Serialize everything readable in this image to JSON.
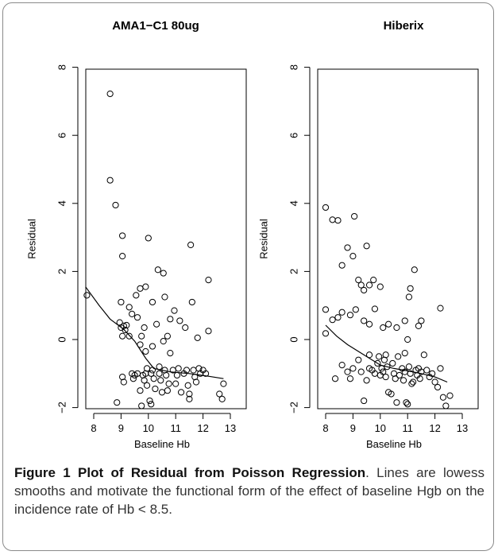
{
  "chart_data": [
    {
      "type": "scatter",
      "title": "AMA1−C1 80ug",
      "xlabel": "Baseline Hb",
      "ylabel": "Residual",
      "xlim": [
        7.6,
        13.2
      ],
      "ylim": [
        -2.3,
        8.6
      ],
      "xticks": [
        8,
        9,
        10,
        11,
        12,
        13
      ],
      "yticks": [
        -2,
        0,
        2,
        4,
        6,
        8
      ],
      "grid": false,
      "points": [
        [
          7.75,
          1.3
        ],
        [
          8.6,
          7.22
        ],
        [
          8.6,
          4.68
        ],
        [
          8.8,
          3.95
        ],
        [
          8.85,
          -1.85
        ],
        [
          9.05,
          3.05
        ],
        [
          9.05,
          2.45
        ],
        [
          9.0,
          1.1
        ],
        [
          8.95,
          0.5
        ],
        [
          9.0,
          0.35
        ],
        [
          9.05,
          0.1
        ],
        [
          9.1,
          0.4
        ],
        [
          9.15,
          0.28
        ],
        [
          9.2,
          0.42
        ],
        [
          9.05,
          -1.1
        ],
        [
          9.1,
          -1.25
        ],
        [
          9.3,
          0.95
        ],
        [
          9.4,
          0.75
        ],
        [
          9.3,
          0.1
        ],
        [
          9.4,
          -1.0
        ],
        [
          9.5,
          -1.05
        ],
        [
          9.45,
          -1.15
        ],
        [
          9.55,
          1.3
        ],
        [
          9.7,
          1.5
        ],
        [
          9.6,
          0.65
        ],
        [
          9.7,
          -0.15
        ],
        [
          9.75,
          0.1
        ],
        [
          9.8,
          -1.05
        ],
        [
          9.7,
          -1.5
        ],
        [
          9.75,
          -1.95
        ],
        [
          9.9,
          1.55
        ],
        [
          9.85,
          0.35
        ],
        [
          9.9,
          -0.35
        ],
        [
          9.95,
          -0.85
        ],
        [
          9.9,
          -1.0
        ],
        [
          9.85,
          -1.2
        ],
        [
          9.95,
          -1.35
        ],
        [
          10.0,
          2.98
        ],
        [
          10.05,
          -1.8
        ],
        [
          10.1,
          -1.9
        ],
        [
          10.15,
          1.1
        ],
        [
          10.15,
          -0.2
        ],
        [
          10.1,
          -1.0
        ],
        [
          10.15,
          -0.9
        ],
        [
          10.2,
          -1.15
        ],
        [
          10.25,
          -1.45
        ],
        [
          10.3,
          0.45
        ],
        [
          10.35,
          2.05
        ],
        [
          10.4,
          -1.0
        ],
        [
          10.4,
          -0.8
        ],
        [
          10.45,
          -1.2
        ],
        [
          10.5,
          -1.55
        ],
        [
          10.55,
          1.95
        ],
        [
          10.6,
          1.25
        ],
        [
          10.55,
          -0.05
        ],
        [
          10.6,
          -0.9
        ],
        [
          10.65,
          -1.05
        ],
        [
          10.7,
          -1.5
        ],
        [
          10.75,
          -1.3
        ],
        [
          10.8,
          0.6
        ],
        [
          10.8,
          -0.4
        ],
        [
          10.9,
          -0.9
        ],
        [
          10.95,
          0.85
        ],
        [
          11.0,
          -1.3
        ],
        [
          11.05,
          -1.05
        ],
        [
          11.1,
          -0.85
        ],
        [
          11.15,
          0.55
        ],
        [
          11.2,
          -1.55
        ],
        [
          11.3,
          -1.0
        ],
        [
          11.35,
          0.35
        ],
        [
          11.4,
          -0.9
        ],
        [
          11.45,
          -1.35
        ],
        [
          11.5,
          -1.6
        ],
        [
          11.55,
          2.78
        ],
        [
          11.6,
          1.1
        ],
        [
          11.65,
          -0.9
        ],
        [
          11.7,
          -1.1
        ],
        [
          11.75,
          -1.25
        ],
        [
          11.8,
          0.05
        ],
        [
          11.85,
          -0.85
        ],
        [
          11.9,
          -1.0
        ],
        [
          12.0,
          -0.9
        ],
        [
          12.1,
          -1.0
        ],
        [
          12.2,
          1.75
        ],
        [
          12.2,
          0.25
        ],
        [
          12.6,
          -1.6
        ],
        [
          12.75,
          -1.3
        ],
        [
          12.7,
          -1.75
        ],
        [
          11.5,
          -1.75
        ],
        [
          9.6,
          -1.0
        ],
        [
          10.7,
          0.1
        ]
      ],
      "lowess": [
        [
          7.7,
          1.55
        ],
        [
          8.2,
          1.0
        ],
        [
          8.6,
          0.6
        ],
        [
          9.1,
          0.3
        ],
        [
          9.5,
          -0.05
        ],
        [
          9.9,
          -0.55
        ],
        [
          10.2,
          -0.85
        ],
        [
          10.8,
          -0.95
        ],
        [
          11.5,
          -1.0
        ],
        [
          12.2,
          -1.08
        ],
        [
          12.75,
          -1.15
        ]
      ]
    },
    {
      "type": "scatter",
      "title": "Hiberix",
      "xlabel": "Baseline Hb",
      "ylabel": "Residual",
      "xlim": [
        7.6,
        13.2
      ],
      "ylim": [
        -2.3,
        8.6
      ],
      "xticks": [
        8,
        9,
        10,
        11,
        12,
        13
      ],
      "yticks": [
        -2,
        0,
        2,
        4,
        6,
        8
      ],
      "grid": false,
      "points": [
        [
          8.0,
          3.88
        ],
        [
          8.25,
          3.52
        ],
        [
          8.45,
          3.5
        ],
        [
          9.05,
          3.62
        ],
        [
          8.8,
          2.7
        ],
        [
          9.0,
          2.45
        ],
        [
          9.5,
          2.75
        ],
        [
          8.6,
          2.18
        ],
        [
          9.2,
          1.75
        ],
        [
          9.3,
          1.6
        ],
        [
          9.4,
          1.45
        ],
        [
          9.6,
          1.6
        ],
        [
          9.75,
          1.75
        ],
        [
          10.0,
          1.55
        ],
        [
          8.0,
          0.88
        ],
        [
          8.0,
          0.18
        ],
        [
          8.25,
          0.58
        ],
        [
          8.45,
          0.65
        ],
        [
          8.6,
          0.8
        ],
        [
          8.9,
          0.72
        ],
        [
          9.1,
          0.88
        ],
        [
          9.4,
          0.55
        ],
        [
          9.6,
          0.45
        ],
        [
          9.8,
          0.9
        ],
        [
          10.1,
          0.35
        ],
        [
          10.3,
          0.45
        ],
        [
          10.6,
          0.35
        ],
        [
          10.9,
          0.55
        ],
        [
          11.0,
          0.0
        ],
        [
          11.05,
          1.25
        ],
        [
          11.1,
          1.5
        ],
        [
          11.25,
          2.05
        ],
        [
          11.4,
          0.4
        ],
        [
          11.5,
          0.55
        ],
        [
          12.2,
          0.92
        ],
        [
          8.35,
          -1.15
        ],
        [
          8.6,
          -0.75
        ],
        [
          8.8,
          -0.95
        ],
        [
          8.9,
          -1.15
        ],
        [
          9.0,
          -0.85
        ],
        [
          9.2,
          -0.6
        ],
        [
          9.3,
          -0.95
        ],
        [
          9.4,
          -1.8
        ],
        [
          9.5,
          -1.2
        ],
        [
          9.6,
          -0.85
        ],
        [
          9.7,
          -0.9
        ],
        [
          9.8,
          -1.0
        ],
        [
          9.9,
          -0.7
        ],
        [
          9.95,
          -0.5
        ],
        [
          10.0,
          -1.05
        ],
        [
          10.05,
          -0.85
        ],
        [
          10.1,
          -0.95
        ],
        [
          10.15,
          -0.6
        ],
        [
          10.2,
          -1.1
        ],
        [
          10.25,
          -0.8
        ],
        [
          10.3,
          -1.55
        ],
        [
          10.4,
          -1.6
        ],
        [
          10.45,
          -0.7
        ],
        [
          10.5,
          -1.0
        ],
        [
          10.55,
          -1.15
        ],
        [
          10.6,
          -1.85
        ],
        [
          10.65,
          -0.5
        ],
        [
          10.7,
          -1.05
        ],
        [
          10.8,
          -0.85
        ],
        [
          10.85,
          -1.2
        ],
        [
          10.9,
          -0.95
        ],
        [
          10.95,
          -1.85
        ],
        [
          11.0,
          -1.9
        ],
        [
          11.05,
          -0.8
        ],
        [
          11.1,
          -1.0
        ],
        [
          11.15,
          -1.3
        ],
        [
          11.2,
          -1.25
        ],
        [
          11.3,
          -0.9
        ],
        [
          11.35,
          -1.05
        ],
        [
          11.4,
          -0.85
        ],
        [
          11.45,
          -1.15
        ],
        [
          11.5,
          -0.95
        ],
        [
          11.6,
          -0.45
        ],
        [
          11.7,
          -0.9
        ],
        [
          11.8,
          -1.1
        ],
        [
          11.9,
          -1.0
        ],
        [
          12.0,
          -1.25
        ],
        [
          12.1,
          -1.4
        ],
        [
          12.2,
          -0.85
        ],
        [
          12.3,
          -1.7
        ],
        [
          12.4,
          -1.95
        ],
        [
          12.55,
          -1.65
        ],
        [
          10.9,
          -0.4
        ],
        [
          9.6,
          -0.45
        ],
        [
          10.2,
          -0.45
        ]
      ],
      "lowess": [
        [
          8.0,
          0.42
        ],
        [
          8.4,
          0.1
        ],
        [
          8.8,
          -0.15
        ],
        [
          9.2,
          -0.35
        ],
        [
          9.6,
          -0.55
        ],
        [
          10.0,
          -0.75
        ],
        [
          10.5,
          -0.85
        ],
        [
          11.0,
          -0.92
        ],
        [
          11.5,
          -1.0
        ],
        [
          12.0,
          -1.1
        ],
        [
          12.45,
          -1.25
        ]
      ]
    }
  ],
  "caption": {
    "lead": "Figure 1 Plot of Residual from Poisson Regression",
    "text": ". Lines are lowess smooths and motivate the functional form of the effect of baseline Hgb on the incidence rate of Hb < 8.5."
  }
}
